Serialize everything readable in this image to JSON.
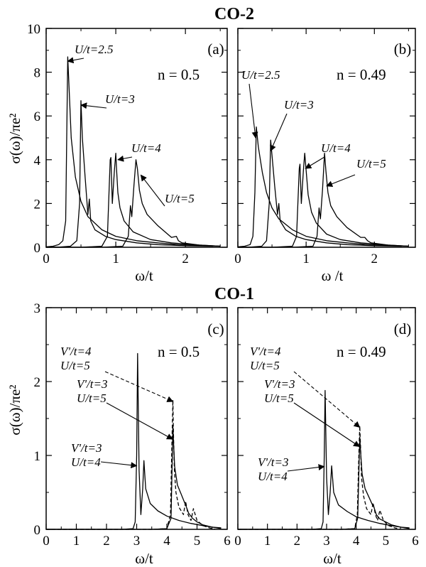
{
  "chart_data": [
    {
      "id": "a",
      "type": "line",
      "group_title": "CO-2",
      "panel_label": "(a)",
      "n_label": "n = 0.5",
      "xlabel": "ω/t",
      "ylabel": "σ(ω)/πe²",
      "xlim": [
        0,
        2.6
      ],
      "ylim": [
        0,
        10
      ],
      "xticks": [
        0,
        1,
        2
      ],
      "xticks_minor": [
        0.5,
        1.5,
        2.5
      ],
      "yticks": [
        0,
        2,
        4,
        6,
        8,
        10
      ],
      "yticks_minor": [
        1,
        3,
        5,
        7,
        9
      ],
      "series": [
        {
          "label": "U/t=2.5",
          "dashed": false,
          "x": [
            0.0,
            0.1,
            0.18,
            0.24,
            0.28,
            0.31,
            0.33,
            0.36,
            0.42,
            0.5,
            0.6,
            0.8,
            1.0,
            1.3,
            1.6,
            1.9,
            2.2,
            2.5
          ],
          "y": [
            0.02,
            0.05,
            0.12,
            0.3,
            1.2,
            8.7,
            7.2,
            5.0,
            3.2,
            2.1,
            1.4,
            0.8,
            0.5,
            0.3,
            0.2,
            0.12,
            0.08,
            0.05
          ]
        },
        {
          "label": "U/t=3",
          "dashed": false,
          "x": [
            0.0,
            0.2,
            0.35,
            0.44,
            0.48,
            0.5,
            0.52,
            0.56,
            0.6,
            0.62,
            0.64,
            0.7,
            0.85,
            1.0,
            1.3,
            1.6,
            2.0,
            2.4
          ],
          "y": [
            0.0,
            0.01,
            0.05,
            0.3,
            2.0,
            6.7,
            5.0,
            3.2,
            1.5,
            2.2,
            1.2,
            0.8,
            0.5,
            0.35,
            0.2,
            0.12,
            0.07,
            0.05
          ]
        },
        {
          "label": "U/t=4",
          "dashed": false,
          "x": [
            0.0,
            0.5,
            0.8,
            0.88,
            0.92,
            0.93,
            0.95,
            0.98,
            1.0,
            1.01,
            1.03,
            1.06,
            1.12,
            1.25,
            1.5,
            1.8,
            2.2,
            2.5
          ],
          "y": [
            0.0,
            0.0,
            0.05,
            0.5,
            4.0,
            4.1,
            2.0,
            3.5,
            4.3,
            3.6,
            2.5,
            1.8,
            1.2,
            0.7,
            0.35,
            0.2,
            0.1,
            0.05
          ]
        },
        {
          "label": "U/t=5",
          "dashed": false,
          "x": [
            0.0,
            0.8,
            1.1,
            1.18,
            1.21,
            1.23,
            1.26,
            1.29,
            1.31,
            1.34,
            1.38,
            1.45,
            1.6,
            1.8,
            1.87,
            1.9,
            1.95,
            2.2,
            2.5
          ],
          "y": [
            0.0,
            0.0,
            0.05,
            0.5,
            1.9,
            1.4,
            2.8,
            4.0,
            3.6,
            2.6,
            2.0,
            1.5,
            1.0,
            0.45,
            0.5,
            0.3,
            0.2,
            0.1,
            0.05
          ]
        }
      ],
      "annotations": [
        {
          "text": "U/t=2.5",
          "target": [
            0.31,
            8.5
          ]
        },
        {
          "text": "U/t=3",
          "target": [
            0.5,
            6.5
          ]
        },
        {
          "text": "U/t=4",
          "target": [
            1.03,
            4.0
          ]
        },
        {
          "text": "U/t=5",
          "target": [
            1.36,
            3.3
          ]
        }
      ]
    },
    {
      "id": "b",
      "type": "line",
      "panel_label": "(b)",
      "n_label": "n = 0.49",
      "xlabel": "ω /t",
      "xlim": [
        0,
        2.6
      ],
      "ylim": [
        0,
        10
      ],
      "xticks": [
        0,
        1,
        2
      ],
      "xticks_minor": [
        0.5,
        1.5,
        2.5
      ],
      "yticks": [
        0,
        2,
        4,
        6,
        8,
        10
      ],
      "yticks_minor": [
        1,
        3,
        5,
        7,
        9
      ],
      "series": [
        {
          "label": "U/t=2.5",
          "dashed": false,
          "x": [
            0.0,
            0.1,
            0.18,
            0.22,
            0.25,
            0.27,
            0.3,
            0.36,
            0.42,
            0.5,
            0.6,
            0.8,
            1.0,
            1.3,
            1.6,
            1.9,
            2.2,
            2.5
          ],
          "y": [
            0.02,
            0.05,
            0.12,
            0.5,
            2.5,
            5.5,
            4.6,
            3.4,
            2.5,
            1.8,
            1.3,
            0.8,
            0.5,
            0.3,
            0.2,
            0.12,
            0.08,
            0.05
          ]
        },
        {
          "label": "U/t=3",
          "dashed": false,
          "x": [
            0.0,
            0.2,
            0.35,
            0.42,
            0.46,
            0.48,
            0.5,
            0.54,
            0.58,
            0.6,
            0.62,
            0.7,
            0.85,
            1.0,
            1.3,
            1.6,
            2.0,
            2.4
          ],
          "y": [
            0.0,
            0.01,
            0.05,
            0.3,
            2.0,
            4.9,
            4.2,
            2.8,
            1.5,
            2.0,
            1.2,
            0.8,
            0.5,
            0.35,
            0.2,
            0.12,
            0.07,
            0.05
          ]
        },
        {
          "label": "U/t=4",
          "dashed": false,
          "x": [
            0.0,
            0.5,
            0.8,
            0.86,
            0.9,
            0.91,
            0.93,
            0.96,
            0.98,
            1.0,
            1.03,
            1.08,
            1.15,
            1.3,
            1.5,
            1.8,
            2.2,
            2.5
          ],
          "y": [
            0.0,
            0.0,
            0.05,
            0.5,
            3.6,
            3.8,
            2.0,
            3.5,
            4.3,
            3.5,
            2.4,
            1.6,
            1.1,
            0.6,
            0.35,
            0.2,
            0.1,
            0.05
          ]
        },
        {
          "label": "U/t=5",
          "dashed": false,
          "x": [
            0.0,
            0.8,
            1.1,
            1.16,
            1.19,
            1.21,
            1.24,
            1.27,
            1.29,
            1.32,
            1.36,
            1.45,
            1.6,
            1.8,
            1.86,
            1.9,
            1.95,
            2.2,
            2.5
          ],
          "y": [
            0.0,
            0.0,
            0.05,
            0.5,
            1.8,
            1.3,
            2.6,
            4.3,
            3.5,
            2.5,
            1.9,
            1.4,
            0.9,
            0.45,
            0.45,
            0.3,
            0.2,
            0.1,
            0.05
          ]
        }
      ],
      "annotations": [
        {
          "text": "U/t=2.5",
          "target": [
            0.26,
            5.0
          ]
        },
        {
          "text": "U/t=3",
          "target": [
            0.48,
            4.4
          ]
        },
        {
          "text": "U/t=4",
          "target": [
            0.99,
            3.6
          ]
        },
        {
          "text": "U/t=5",
          "target": [
            1.3,
            2.8
          ]
        }
      ]
    },
    {
      "id": "c",
      "type": "line",
      "group_title": "CO-1",
      "panel_label": "(c)",
      "n_label": "n = 0.5",
      "xlabel": "ω/t",
      "ylabel": "σ(ω)/πe²",
      "xlim": [
        0,
        6
      ],
      "ylim": [
        0,
        3
      ],
      "xticks": [
        0,
        1,
        2,
        3,
        4,
        5,
        6
      ],
      "xticks_minor": [
        0.5,
        1.5,
        2.5,
        3.5,
        4.5,
        5.5
      ],
      "yticks": [
        0,
        1,
        2,
        3
      ],
      "yticks_minor": [
        0.5,
        1.5,
        2.5
      ],
      "series": [
        {
          "label": "V'/t=3 U/t=4",
          "dashed": false,
          "x": [
            0.0,
            2.5,
            2.88,
            2.95,
            3.0,
            3.03,
            3.08,
            3.14,
            3.2,
            3.24,
            3.3,
            3.45,
            3.7,
            4.0,
            4.4,
            4.8,
            5.2,
            5.5,
            5.8
          ],
          "y": [
            0.0,
            0.0,
            0.01,
            0.1,
            1.0,
            2.38,
            0.8,
            0.2,
            0.55,
            0.93,
            0.55,
            0.35,
            0.25,
            0.18,
            0.12,
            0.08,
            0.05,
            0.03,
            0.02
          ]
        },
        {
          "label": "V'/t=3 U/t=5",
          "dashed": false,
          "x": [
            0.0,
            3.5,
            4.0,
            4.14,
            4.18,
            4.2,
            4.22,
            4.26,
            4.35,
            4.5,
            4.6,
            4.65,
            4.72,
            4.85,
            5.0,
            5.2,
            5.5,
            5.8
          ],
          "y": [
            0.0,
            0.0,
            0.01,
            0.15,
            1.0,
            1.4,
            1.2,
            0.85,
            0.6,
            0.45,
            0.35,
            0.3,
            0.22,
            0.15,
            0.1,
            0.06,
            0.03,
            0.01
          ]
        },
        {
          "label": "V'/t=4 U/t=5",
          "dashed": true,
          "x": [
            0.0,
            3.5,
            4.0,
            4.12,
            4.17,
            4.2,
            4.22,
            4.25,
            4.3,
            4.4,
            4.55,
            4.62,
            4.7,
            4.8,
            4.88,
            5.0,
            5.2,
            5.4,
            5.6
          ],
          "y": [
            0.0,
            0.0,
            0.01,
            0.2,
            1.2,
            1.75,
            1.3,
            0.8,
            0.5,
            0.3,
            0.2,
            0.38,
            0.2,
            0.12,
            0.28,
            0.12,
            0.05,
            0.02,
            0.0
          ]
        }
      ],
      "annotations": [
        {
          "text_lines": [
            "V'/t=4",
            "U/t=5"
          ],
          "target": [
            4.2,
            1.73
          ],
          "dashed": true
        },
        {
          "text_lines": [
            "V'/t=3",
            "U/t=5"
          ],
          "target": [
            4.19,
            1.22
          ],
          "dashed": false
        },
        {
          "text_lines": [
            "V'/t=3",
            "U/t=4"
          ],
          "target": [
            3.0,
            0.86
          ],
          "dashed": false
        }
      ]
    },
    {
      "id": "d",
      "type": "line",
      "panel_label": "(d)",
      "n_label": "n = 0.49",
      "xlabel": "ω/t",
      "xlim": [
        0,
        6
      ],
      "ylim": [
        0,
        3
      ],
      "xticks": [
        0,
        1,
        2,
        3,
        4,
        5,
        6
      ],
      "xticks_minor": [
        0.5,
        1.5,
        2.5,
        3.5,
        4.5,
        5.5
      ],
      "yticks": [
        0,
        1,
        2,
        3
      ],
      "yticks_minor": [
        0.5,
        1.5,
        2.5
      ],
      "series": [
        {
          "label": "V'/t=3 U/t=4",
          "dashed": false,
          "x": [
            0.0,
            2.5,
            2.82,
            2.88,
            2.92,
            2.95,
            3.0,
            3.06,
            3.12,
            3.17,
            3.24,
            3.4,
            3.7,
            4.0,
            4.4,
            4.8,
            5.2,
            5.5,
            5.8
          ],
          "y": [
            0.0,
            0.0,
            0.01,
            0.1,
            1.0,
            1.88,
            0.7,
            0.2,
            0.5,
            0.86,
            0.5,
            0.33,
            0.24,
            0.17,
            0.12,
            0.08,
            0.05,
            0.03,
            0.02
          ]
        },
        {
          "label": "V'/t=3 U/t=5",
          "dashed": false,
          "x": [
            0.0,
            3.5,
            3.95,
            4.05,
            4.1,
            4.12,
            4.15,
            4.2,
            4.3,
            4.45,
            4.55,
            4.6,
            4.68,
            4.8,
            5.0,
            5.2,
            5.5,
            5.8
          ],
          "y": [
            0.0,
            0.0,
            0.01,
            0.15,
            0.9,
            1.25,
            1.05,
            0.75,
            0.55,
            0.42,
            0.33,
            0.3,
            0.2,
            0.14,
            0.1,
            0.06,
            0.03,
            0.01
          ]
        },
        {
          "label": "V'/t=4 U/t=5",
          "dashed": true,
          "x": [
            0.0,
            3.5,
            3.95,
            4.04,
            4.09,
            4.12,
            4.15,
            4.18,
            4.25,
            4.35,
            4.5,
            4.57,
            4.65,
            4.72,
            4.8,
            4.92,
            5.1,
            5.3,
            5.5
          ],
          "y": [
            0.0,
            0.0,
            0.01,
            0.2,
            1.0,
            1.4,
            1.1,
            0.7,
            0.45,
            0.28,
            0.2,
            0.36,
            0.2,
            0.12,
            0.26,
            0.12,
            0.05,
            0.02,
            0.0
          ]
        }
      ],
      "annotations": [
        {
          "text_lines": [
            "V'/t=4",
            "U/t=5"
          ],
          "target": [
            4.12,
            1.38
          ],
          "dashed": true
        },
        {
          "text_lines": [
            "V'/t=3",
            "U/t=5"
          ],
          "target": [
            4.11,
            1.12
          ],
          "dashed": false
        },
        {
          "text_lines": [
            "V'/t=3",
            "U/t=4"
          ],
          "target": [
            2.92,
            0.85
          ],
          "dashed": false
        }
      ]
    }
  ]
}
